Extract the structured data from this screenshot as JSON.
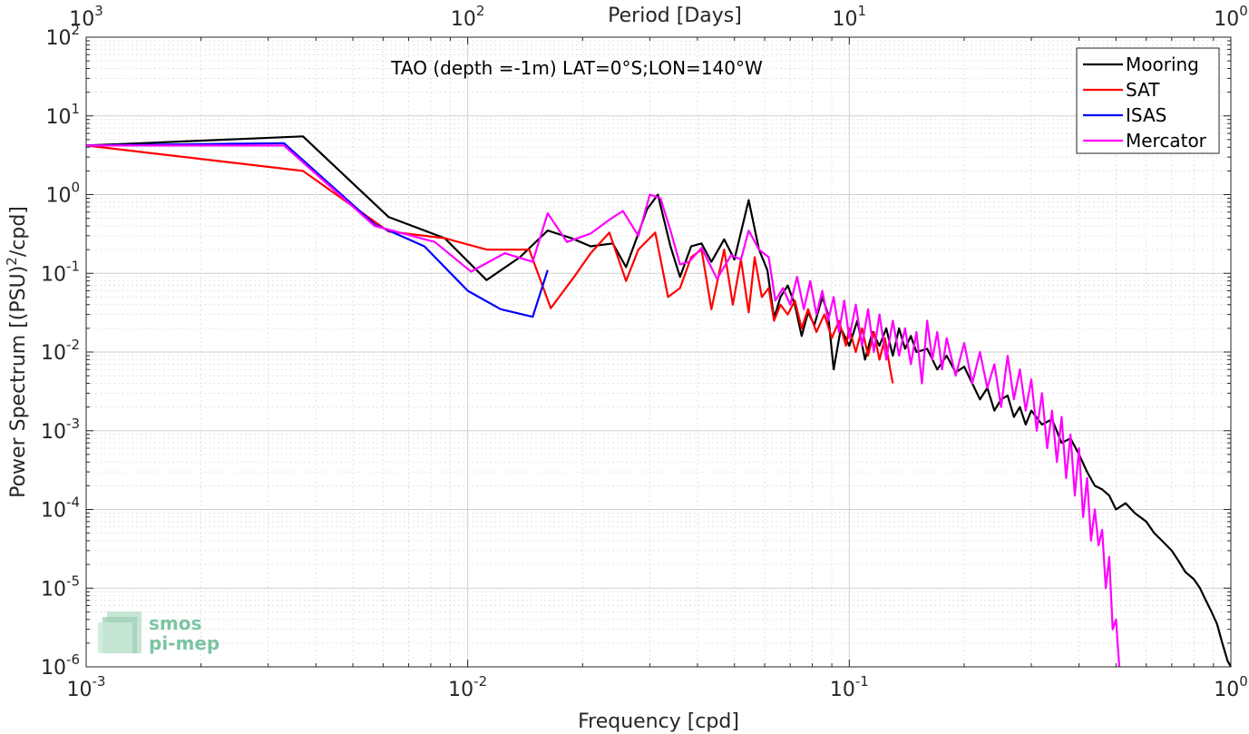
{
  "chart_data": {
    "type": "line",
    "title": "TAO (depth =-1m) LAT=0°S;LON=140°W",
    "xlabel": "Frequency [cpd]",
    "x2label": "Period [Days]",
    "ylabel_main": "Power Spectrum [(PSU)",
    "ylabel_sup": "2",
    "ylabel_tail": "/cpd]",
    "x_scale": "log",
    "y_scale": "log",
    "xlim": [
      0.001,
      1
    ],
    "ylim": [
      1e-06,
      100
    ],
    "grid": true,
    "legend_position": "top-right",
    "x_ticks": [
      {
        "value": 0.001,
        "base": "10",
        "exp": "-3"
      },
      {
        "value": 0.01,
        "base": "10",
        "exp": "-2"
      },
      {
        "value": 0.1,
        "base": "10",
        "exp": "-1"
      },
      {
        "value": 1,
        "base": "10",
        "exp": "0"
      }
    ],
    "x2_ticks": [
      {
        "value": 1000,
        "base": "10",
        "exp": "3"
      },
      {
        "value": 100,
        "base": "10",
        "exp": "2"
      },
      {
        "value": 10,
        "base": "10",
        "exp": "1"
      },
      {
        "value": 1,
        "base": "10",
        "exp": "0"
      }
    ],
    "y_ticks": [
      {
        "value": 100,
        "base": "10",
        "exp": "2"
      },
      {
        "value": 10,
        "base": "10",
        "exp": "1"
      },
      {
        "value": 1,
        "base": "10",
        "exp": "0"
      },
      {
        "value": 0.1,
        "base": "10",
        "exp": "-1"
      },
      {
        "value": 0.01,
        "base": "10",
        "exp": "-2"
      },
      {
        "value": 0.001,
        "base": "10",
        "exp": "-3"
      },
      {
        "value": 0.0001,
        "base": "10",
        "exp": "-4"
      },
      {
        "value": 1e-05,
        "base": "10",
        "exp": "-5"
      },
      {
        "value": 1e-06,
        "base": "10",
        "exp": "-6"
      }
    ],
    "series": [
      {
        "name": "Mooring",
        "color": "#000000",
        "points": [
          [
            0.001,
            4.2
          ],
          [
            0.0037,
            5.5
          ],
          [
            0.0062,
            0.52
          ],
          [
            0.0087,
            0.28
          ],
          [
            0.0112,
            0.082
          ],
          [
            0.0137,
            0.16
          ],
          [
            0.0162,
            0.35
          ],
          [
            0.0187,
            0.28
          ],
          [
            0.021,
            0.22
          ],
          [
            0.024,
            0.24
          ],
          [
            0.026,
            0.12
          ],
          [
            0.028,
            0.32
          ],
          [
            0.0295,
            0.65
          ],
          [
            0.0315,
            1.0
          ],
          [
            0.034,
            0.22
          ],
          [
            0.036,
            0.09
          ],
          [
            0.0385,
            0.22
          ],
          [
            0.041,
            0.24
          ],
          [
            0.0435,
            0.14
          ],
          [
            0.047,
            0.27
          ],
          [
            0.05,
            0.15
          ],
          [
            0.0545,
            0.85
          ],
          [
            0.058,
            0.2
          ],
          [
            0.061,
            0.11
          ],
          [
            0.0635,
            0.027
          ],
          [
            0.066,
            0.05
          ],
          [
            0.069,
            0.07
          ],
          [
            0.072,
            0.04
          ],
          [
            0.075,
            0.016
          ],
          [
            0.078,
            0.032
          ],
          [
            0.081,
            0.022
          ],
          [
            0.085,
            0.05
          ],
          [
            0.088,
            0.03
          ],
          [
            0.091,
            0.006
          ],
          [
            0.095,
            0.02
          ],
          [
            0.1,
            0.012
          ],
          [
            0.105,
            0.025
          ],
          [
            0.11,
            0.008
          ],
          [
            0.115,
            0.018
          ],
          [
            0.12,
            0.012
          ],
          [
            0.125,
            0.02
          ],
          [
            0.13,
            0.009
          ],
          [
            0.135,
            0.02
          ],
          [
            0.14,
            0.011
          ],
          [
            0.145,
            0.016
          ],
          [
            0.15,
            0.01
          ],
          [
            0.16,
            0.011
          ],
          [
            0.17,
            0.006
          ],
          [
            0.18,
            0.009
          ],
          [
            0.19,
            0.0055
          ],
          [
            0.2,
            0.0065
          ],
          [
            0.21,
            0.004
          ],
          [
            0.22,
            0.0025
          ],
          [
            0.23,
            0.0035
          ],
          [
            0.24,
            0.0018
          ],
          [
            0.25,
            0.0025
          ],
          [
            0.26,
            0.0028
          ],
          [
            0.27,
            0.0015
          ],
          [
            0.28,
            0.002
          ],
          [
            0.29,
            0.0012
          ],
          [
            0.3,
            0.0018
          ],
          [
            0.32,
            0.0012
          ],
          [
            0.34,
            0.0014
          ],
          [
            0.36,
            0.0007
          ],
          [
            0.38,
            0.0008
          ],
          [
            0.4,
            0.0005
          ],
          [
            0.42,
            0.0003
          ],
          [
            0.44,
            0.0002
          ],
          [
            0.46,
            0.00018
          ],
          [
            0.48,
            0.00015
          ],
          [
            0.5,
            0.0001
          ],
          [
            0.53,
            0.00012
          ],
          [
            0.56,
            9e-05
          ],
          [
            0.6,
            7e-05
          ],
          [
            0.63,
            5e-05
          ],
          [
            0.66,
            4e-05
          ],
          [
            0.7,
            3e-05
          ],
          [
            0.73,
            2.2e-05
          ],
          [
            0.76,
            1.6e-05
          ],
          [
            0.8,
            1.3e-05
          ],
          [
            0.83,
            1e-05
          ],
          [
            0.86,
            7e-06
          ],
          [
            0.89,
            5e-06
          ],
          [
            0.92,
            3.5e-06
          ],
          [
            0.95,
            2e-06
          ],
          [
            0.98,
            1.2e-06
          ],
          [
            1.0,
            1e-06
          ]
        ]
      },
      {
        "name": "SAT",
        "color": "#ff0000",
        "points": [
          [
            0.001,
            4.2
          ],
          [
            0.0037,
            2.0
          ],
          [
            0.0062,
            0.34
          ],
          [
            0.0087,
            0.28
          ],
          [
            0.0112,
            0.2
          ],
          [
            0.0137,
            0.2
          ],
          [
            0.0145,
            0.2
          ],
          [
            0.0165,
            0.036
          ],
          [
            0.019,
            0.09
          ],
          [
            0.021,
            0.18
          ],
          [
            0.0235,
            0.33
          ],
          [
            0.026,
            0.08
          ],
          [
            0.028,
            0.2
          ],
          [
            0.031,
            0.33
          ],
          [
            0.0335,
            0.05
          ],
          [
            0.036,
            0.065
          ],
          [
            0.0385,
            0.16
          ],
          [
            0.041,
            0.2
          ],
          [
            0.0435,
            0.035
          ],
          [
            0.047,
            0.2
          ],
          [
            0.0495,
            0.04
          ],
          [
            0.052,
            0.15
          ],
          [
            0.0545,
            0.032
          ],
          [
            0.0565,
            0.16
          ],
          [
            0.059,
            0.05
          ],
          [
            0.0615,
            0.065
          ],
          [
            0.0635,
            0.025
          ],
          [
            0.066,
            0.04
          ],
          [
            0.069,
            0.03
          ],
          [
            0.072,
            0.045
          ],
          [
            0.075,
            0.02
          ],
          [
            0.078,
            0.035
          ],
          [
            0.082,
            0.018
          ],
          [
            0.086,
            0.03
          ],
          [
            0.09,
            0.015
          ],
          [
            0.094,
            0.025
          ],
          [
            0.098,
            0.012
          ],
          [
            0.1,
            0.02
          ],
          [
            0.104,
            0.01
          ],
          [
            0.108,
            0.02
          ],
          [
            0.112,
            0.009
          ],
          [
            0.116,
            0.018
          ],
          [
            0.12,
            0.008
          ],
          [
            0.124,
            0.015
          ],
          [
            0.128,
            0.006
          ],
          [
            0.13,
            0.004
          ]
        ]
      },
      {
        "name": "ISAS",
        "color": "#0000ff",
        "points": [
          [
            0.001,
            4.2
          ],
          [
            0.0033,
            4.5
          ],
          [
            0.0057,
            0.42
          ],
          [
            0.0077,
            0.22
          ],
          [
            0.01,
            0.06
          ],
          [
            0.0122,
            0.035
          ],
          [
            0.0148,
            0.028
          ],
          [
            0.0162,
            0.11
          ]
        ]
      },
      {
        "name": "Mercator",
        "color": "#ff00ff",
        "points": [
          [
            0.001,
            4.2
          ],
          [
            0.0033,
            4.2
          ],
          [
            0.0057,
            0.4
          ],
          [
            0.0082,
            0.25
          ],
          [
            0.0102,
            0.105
          ],
          [
            0.0125,
            0.18
          ],
          [
            0.0148,
            0.14
          ],
          [
            0.0162,
            0.58
          ],
          [
            0.0182,
            0.25
          ],
          [
            0.021,
            0.32
          ],
          [
            0.0235,
            0.48
          ],
          [
            0.0255,
            0.62
          ],
          [
            0.028,
            0.3
          ],
          [
            0.03,
            1.0
          ],
          [
            0.032,
            0.9
          ],
          [
            0.034,
            0.35
          ],
          [
            0.036,
            0.13
          ],
          [
            0.038,
            0.14
          ],
          [
            0.041,
            0.21
          ],
          [
            0.045,
            0.085
          ],
          [
            0.049,
            0.17
          ],
          [
            0.052,
            0.15
          ],
          [
            0.0545,
            0.35
          ],
          [
            0.058,
            0.2
          ],
          [
            0.0615,
            0.16
          ],
          [
            0.064,
            0.045
          ],
          [
            0.067,
            0.065
          ],
          [
            0.07,
            0.04
          ],
          [
            0.073,
            0.09
          ],
          [
            0.076,
            0.035
          ],
          [
            0.079,
            0.08
          ],
          [
            0.082,
            0.03
          ],
          [
            0.085,
            0.06
          ],
          [
            0.088,
            0.025
          ],
          [
            0.091,
            0.05
          ],
          [
            0.094,
            0.018
          ],
          [
            0.097,
            0.045
          ],
          [
            0.1,
            0.015
          ],
          [
            0.104,
            0.04
          ],
          [
            0.108,
            0.012
          ],
          [
            0.112,
            0.035
          ],
          [
            0.116,
            0.01
          ],
          [
            0.12,
            0.03
          ],
          [
            0.125,
            0.008
          ],
          [
            0.13,
            0.025
          ],
          [
            0.135,
            0.009
          ],
          [
            0.14,
            0.02
          ],
          [
            0.145,
            0.007
          ],
          [
            0.15,
            0.018
          ],
          [
            0.155,
            0.004
          ],
          [
            0.16,
            0.025
          ],
          [
            0.165,
            0.008
          ],
          [
            0.17,
            0.018
          ],
          [
            0.175,
            0.006
          ],
          [
            0.18,
            0.015
          ],
          [
            0.19,
            0.005
          ],
          [
            0.2,
            0.013
          ],
          [
            0.21,
            0.004
          ],
          [
            0.22,
            0.01
          ],
          [
            0.23,
            0.0035
          ],
          [
            0.24,
            0.007
          ],
          [
            0.25,
            0.002
          ],
          [
            0.26,
            0.009
          ],
          [
            0.27,
            0.0025
          ],
          [
            0.28,
            0.006
          ],
          [
            0.29,
            0.0018
          ],
          [
            0.3,
            0.0045
          ],
          [
            0.31,
            0.001
          ],
          [
            0.32,
            0.003
          ],
          [
            0.33,
            0.0006
          ],
          [
            0.34,
            0.0018
          ],
          [
            0.35,
            0.0004
          ],
          [
            0.36,
            0.0015
          ],
          [
            0.37,
            0.00025
          ],
          [
            0.38,
            0.0009
          ],
          [
            0.39,
            0.00015
          ],
          [
            0.4,
            0.0006
          ],
          [
            0.41,
            8e-05
          ],
          [
            0.42,
            0.00025
          ],
          [
            0.43,
            4e-05
          ],
          [
            0.44,
            0.0001
          ],
          [
            0.45,
            3.5e-05
          ],
          [
            0.46,
            5.5e-05
          ],
          [
            0.47,
            1e-05
          ],
          [
            0.48,
            2.5e-05
          ],
          [
            0.49,
            3e-06
          ],
          [
            0.5,
            4e-06
          ],
          [
            0.51,
            1e-06
          ]
        ]
      }
    ]
  },
  "logo": {
    "line1": "smos",
    "line2": "pi-mep"
  }
}
